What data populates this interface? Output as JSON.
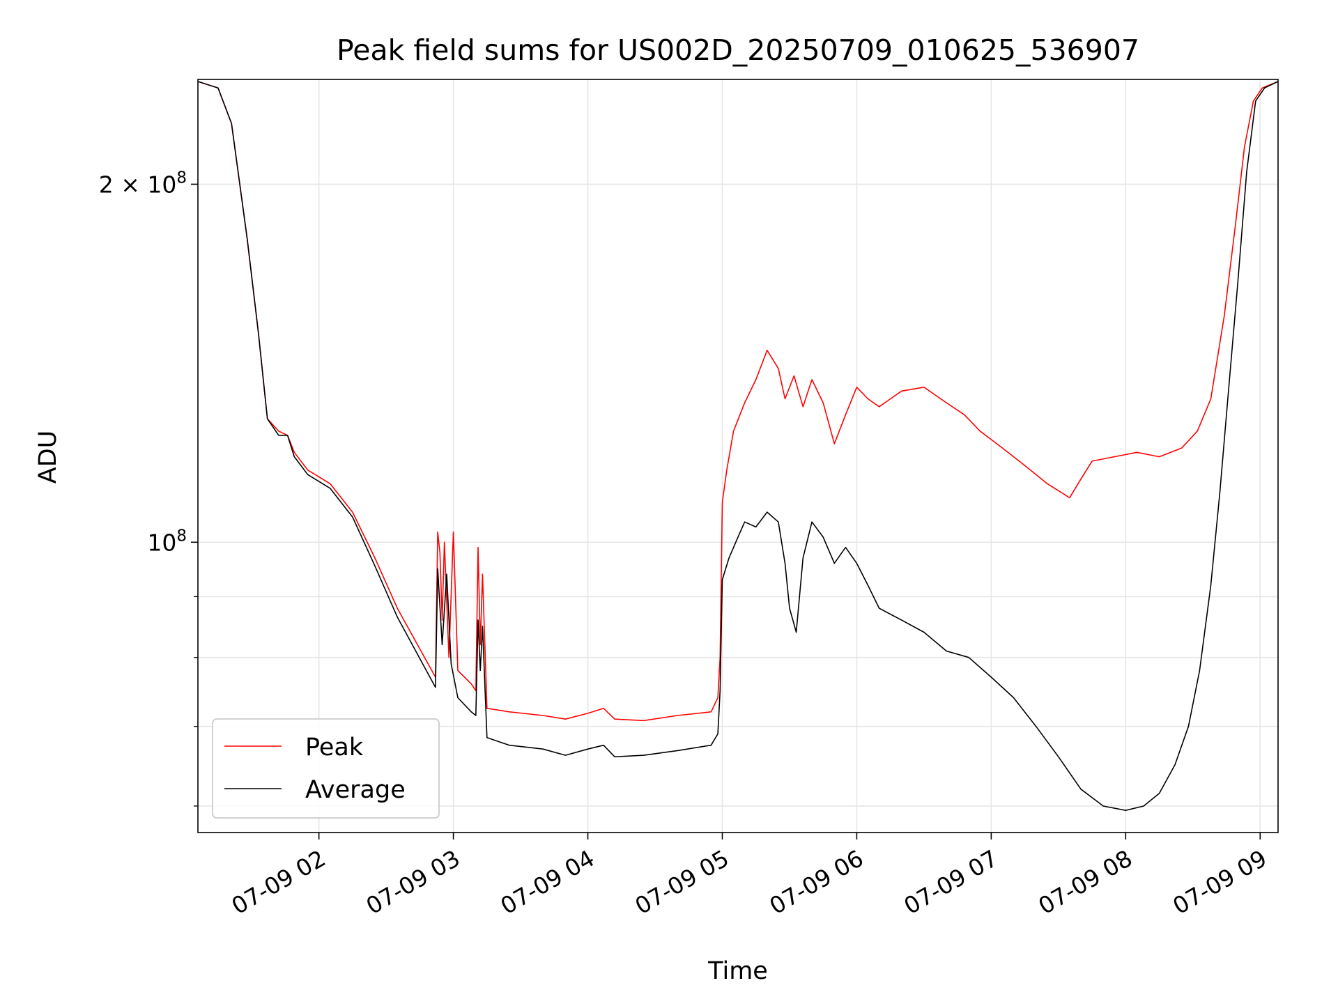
{
  "chart_data": {
    "type": "line",
    "title": "Peak field sums for US002D_20250709_010625_536907",
    "xlabel": "Time",
    "ylabel": "ADU",
    "y_scale": "log",
    "x_unit": "datetime",
    "x_range": [
      "2025-07-09 01:06",
      "2025-07-09 09:08"
    ],
    "ylim": [
      57000000,
      245000000
    ],
    "x_ticks": [
      {
        "value": "2025-07-09 02:00",
        "label": "07-09 02"
      },
      {
        "value": "2025-07-09 03:00",
        "label": "07-09 03"
      },
      {
        "value": "2025-07-09 04:00",
        "label": "07-09 04"
      },
      {
        "value": "2025-07-09 05:00",
        "label": "07-09 05"
      },
      {
        "value": "2025-07-09 06:00",
        "label": "07-09 06"
      },
      {
        "value": "2025-07-09 07:00",
        "label": "07-09 07"
      },
      {
        "value": "2025-07-09 08:00",
        "label": "07-09 08"
      },
      {
        "value": "2025-07-09 09:00",
        "label": "07-09 09"
      }
    ],
    "y_major_ticks": [
      {
        "value": 100000000,
        "base": "10",
        "exp": "8",
        "mult": ""
      },
      {
        "value": 200000000,
        "base": "10",
        "exp": "8",
        "mult": "2 × "
      }
    ],
    "y_minor_ticks": [
      60000000,
      70000000,
      80000000,
      90000000
    ],
    "grid": true,
    "legend_position": "lower-left",
    "series": [
      {
        "name": "Peak",
        "color": "#ff0000",
        "points": [
          [
            "2025-07-09 01:06",
            244000000
          ],
          [
            "2025-07-09 01:15",
            241000000
          ],
          [
            "2025-07-09 01:21",
            225000000
          ],
          [
            "2025-07-09 01:28",
            180000000
          ],
          [
            "2025-07-09 01:33",
            150000000
          ],
          [
            "2025-07-09 01:37",
            127000000
          ],
          [
            "2025-07-09 01:42",
            124000000
          ],
          [
            "2025-07-09 01:46",
            123000000
          ],
          [
            "2025-07-09 01:49",
            119000000
          ],
          [
            "2025-07-09 01:55",
            115000000
          ],
          [
            "2025-07-09 02:05",
            112000000
          ],
          [
            "2025-07-09 02:15",
            106000000
          ],
          [
            "2025-07-09 02:25",
            97000000
          ],
          [
            "2025-07-09 02:35",
            88000000
          ],
          [
            "2025-07-09 02:44",
            82000000
          ],
          [
            "2025-07-09 02:52",
            77000000
          ],
          [
            "2025-07-09 02:53",
            102000000
          ],
          [
            "2025-07-09 02:54",
            98000000
          ],
          [
            "2025-07-09 02:55",
            86000000
          ],
          [
            "2025-07-09 02:56",
            100000000
          ],
          [
            "2025-07-09 02:58",
            80000000
          ],
          [
            "2025-07-09 03:00",
            102000000
          ],
          [
            "2025-07-09 03:02",
            78000000
          ],
          [
            "2025-07-09 03:08",
            76000000
          ],
          [
            "2025-07-09 03:10",
            75000000
          ],
          [
            "2025-07-09 03:11",
            99000000
          ],
          [
            "2025-07-09 03:12",
            82000000
          ],
          [
            "2025-07-09 03:13",
            94000000
          ],
          [
            "2025-07-09 03:15",
            72500000
          ],
          [
            "2025-07-09 03:25",
            72000000
          ],
          [
            "2025-07-09 03:40",
            71500000
          ],
          [
            "2025-07-09 03:50",
            71000000
          ],
          [
            "2025-07-09 04:00",
            71800000
          ],
          [
            "2025-07-09 04:07",
            72500000
          ],
          [
            "2025-07-09 04:12",
            71000000
          ],
          [
            "2025-07-09 04:25",
            70800000
          ],
          [
            "2025-07-09 04:40",
            71500000
          ],
          [
            "2025-07-09 04:55",
            72000000
          ],
          [
            "2025-07-09 04:58",
            74000000
          ],
          [
            "2025-07-09 04:59",
            80000000
          ],
          [
            "2025-07-09 05:00",
            108000000
          ],
          [
            "2025-07-09 05:02",
            115000000
          ],
          [
            "2025-07-09 05:05",
            124000000
          ],
          [
            "2025-07-09 05:10",
            131000000
          ],
          [
            "2025-07-09 05:15",
            137000000
          ],
          [
            "2025-07-09 05:20",
            145000000
          ],
          [
            "2025-07-09 05:25",
            140000000
          ],
          [
            "2025-07-09 05:28",
            132000000
          ],
          [
            "2025-07-09 05:32",
            138000000
          ],
          [
            "2025-07-09 05:36",
            130000000
          ],
          [
            "2025-07-09 05:40",
            137000000
          ],
          [
            "2025-07-09 05:45",
            131000000
          ],
          [
            "2025-07-09 05:50",
            121000000
          ],
          [
            "2025-07-09 05:55",
            128000000
          ],
          [
            "2025-07-09 06:00",
            135000000
          ],
          [
            "2025-07-09 06:05",
            132000000
          ],
          [
            "2025-07-09 06:10",
            130000000
          ],
          [
            "2025-07-09 06:20",
            134000000
          ],
          [
            "2025-07-09 06:30",
            135000000
          ],
          [
            "2025-07-09 06:40",
            131000000
          ],
          [
            "2025-07-09 06:48",
            128000000
          ],
          [
            "2025-07-09 06:55",
            124000000
          ],
          [
            "2025-07-09 07:00",
            122000000
          ],
          [
            "2025-07-09 07:05",
            120000000
          ],
          [
            "2025-07-09 07:15",
            116000000
          ],
          [
            "2025-07-09 07:25",
            112000000
          ],
          [
            "2025-07-09 07:35",
            109000000
          ],
          [
            "2025-07-09 07:40",
            113000000
          ],
          [
            "2025-07-09 07:45",
            117000000
          ],
          [
            "2025-07-09 07:55",
            118000000
          ],
          [
            "2025-07-09 08:05",
            119000000
          ],
          [
            "2025-07-09 08:15",
            118000000
          ],
          [
            "2025-07-09 08:25",
            120000000
          ],
          [
            "2025-07-09 08:32",
            124000000
          ],
          [
            "2025-07-09 08:38",
            132000000
          ],
          [
            "2025-07-09 08:44",
            155000000
          ],
          [
            "2025-07-09 08:49",
            185000000
          ],
          [
            "2025-07-09 08:53",
            215000000
          ],
          [
            "2025-07-09 08:57",
            235000000
          ],
          [
            "2025-07-09 09:01",
            241000000
          ],
          [
            "2025-07-09 09:08",
            244000000
          ]
        ]
      },
      {
        "name": "Average",
        "color": "#000000",
        "points": [
          [
            "2025-07-09 01:06",
            244000000
          ],
          [
            "2025-07-09 01:15",
            241000000
          ],
          [
            "2025-07-09 01:21",
            225000000
          ],
          [
            "2025-07-09 01:28",
            180000000
          ],
          [
            "2025-07-09 01:33",
            150000000
          ],
          [
            "2025-07-09 01:37",
            127000000
          ],
          [
            "2025-07-09 01:42",
            123000000
          ],
          [
            "2025-07-09 01:46",
            123000000
          ],
          [
            "2025-07-09 01:49",
            118000000
          ],
          [
            "2025-07-09 01:55",
            114000000
          ],
          [
            "2025-07-09 02:05",
            111000000
          ],
          [
            "2025-07-09 02:15",
            105000000
          ],
          [
            "2025-07-09 02:25",
            95500000
          ],
          [
            "2025-07-09 02:35",
            86500000
          ],
          [
            "2025-07-09 02:44",
            80500000
          ],
          [
            "2025-07-09 02:52",
            75500000
          ],
          [
            "2025-07-09 02:53",
            95000000
          ],
          [
            "2025-07-09 02:55",
            82000000
          ],
          [
            "2025-07-09 02:57",
            94000000
          ],
          [
            "2025-07-09 02:59",
            79000000
          ],
          [
            "2025-07-09 03:02",
            74000000
          ],
          [
            "2025-07-09 03:08",
            72000000
          ],
          [
            "2025-07-09 03:10",
            71500000
          ],
          [
            "2025-07-09 03:11",
            86000000
          ],
          [
            "2025-07-09 03:12",
            78000000
          ],
          [
            "2025-07-09 03:13",
            85000000
          ],
          [
            "2025-07-09 03:15",
            68500000
          ],
          [
            "2025-07-09 03:25",
            67500000
          ],
          [
            "2025-07-09 03:40",
            67000000
          ],
          [
            "2025-07-09 03:50",
            66200000
          ],
          [
            "2025-07-09 04:00",
            67000000
          ],
          [
            "2025-07-09 04:07",
            67500000
          ],
          [
            "2025-07-09 04:12",
            66000000
          ],
          [
            "2025-07-09 04:25",
            66200000
          ],
          [
            "2025-07-09 04:40",
            66800000
          ],
          [
            "2025-07-09 04:55",
            67500000
          ],
          [
            "2025-07-09 04:58",
            69000000
          ],
          [
            "2025-07-09 04:59",
            75000000
          ],
          [
            "2025-07-09 05:00",
            93000000
          ],
          [
            "2025-07-09 05:03",
            97000000
          ],
          [
            "2025-07-09 05:07",
            101000000
          ],
          [
            "2025-07-09 05:10",
            104000000
          ],
          [
            "2025-07-09 05:15",
            103000000
          ],
          [
            "2025-07-09 05:20",
            106000000
          ],
          [
            "2025-07-09 05:25",
            104000000
          ],
          [
            "2025-07-09 05:28",
            96000000
          ],
          [
            "2025-07-09 05:30",
            88000000
          ],
          [
            "2025-07-09 05:33",
            84000000
          ],
          [
            "2025-07-09 05:36",
            97000000
          ],
          [
            "2025-07-09 05:40",
            104000000
          ],
          [
            "2025-07-09 05:45",
            101000000
          ],
          [
            "2025-07-09 05:50",
            96000000
          ],
          [
            "2025-07-09 05:55",
            99000000
          ],
          [
            "2025-07-09 06:00",
            96000000
          ],
          [
            "2025-07-09 06:05",
            92000000
          ],
          [
            "2025-07-09 06:10",
            88000000
          ],
          [
            "2025-07-09 06:20",
            86000000
          ],
          [
            "2025-07-09 06:30",
            84000000
          ],
          [
            "2025-07-09 06:40",
            81000000
          ],
          [
            "2025-07-09 06:50",
            80000000
          ],
          [
            "2025-07-09 07:00",
            77000000
          ],
          [
            "2025-07-09 07:10",
            74000000
          ],
          [
            "2025-07-09 07:20",
            70000000
          ],
          [
            "2025-07-09 07:30",
            66000000
          ],
          [
            "2025-07-09 07:40",
            62000000
          ],
          [
            "2025-07-09 07:50",
            60000000
          ],
          [
            "2025-07-09 08:00",
            59500000
          ],
          [
            "2025-07-09 08:08",
            60000000
          ],
          [
            "2025-07-09 08:15",
            61500000
          ],
          [
            "2025-07-09 08:22",
            65000000
          ],
          [
            "2025-07-09 08:28",
            70000000
          ],
          [
            "2025-07-09 08:33",
            78000000
          ],
          [
            "2025-07-09 08:38",
            92000000
          ],
          [
            "2025-07-09 08:42",
            110000000
          ],
          [
            "2025-07-09 08:46",
            135000000
          ],
          [
            "2025-07-09 08:50",
            165000000
          ],
          [
            "2025-07-09 08:54",
            205000000
          ],
          [
            "2025-07-09 08:58",
            235000000
          ],
          [
            "2025-07-09 09:02",
            241000000
          ],
          [
            "2025-07-09 09:08",
            244000000
          ]
        ]
      }
    ]
  }
}
